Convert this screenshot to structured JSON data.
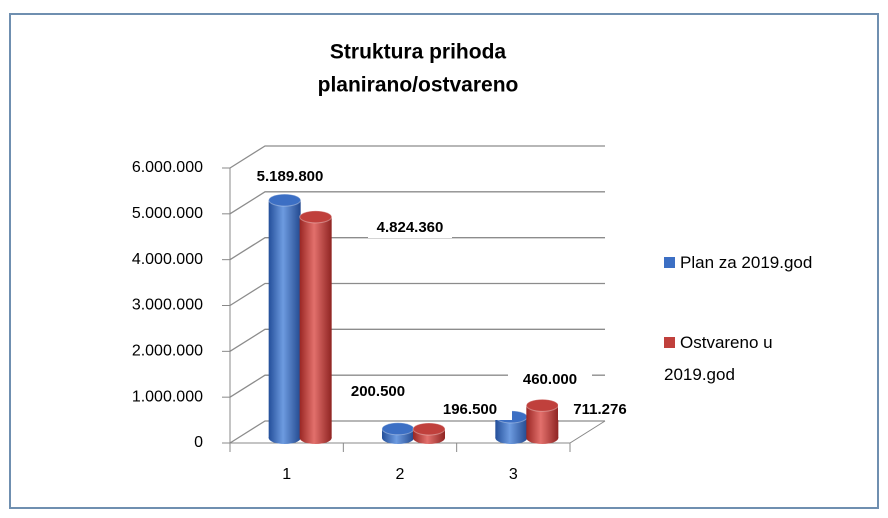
{
  "chart_data": {
    "type": "bar3d",
    "title": [
      "Struktura prihoda",
      "planirano/ostvareno"
    ],
    "categories": [
      "1",
      "2",
      "3"
    ],
    "series": [
      {
        "name": "Plan za 2019.god",
        "color": "#3c6fc4",
        "values": [
          5189800,
          200500,
          460000
        ],
        "value_labels": [
          "5.189.800",
          "200.500",
          "460.000"
        ]
      },
      {
        "name": "Ostvareno u 2019.god",
        "color": "#c0403c",
        "values": [
          4824360,
          196500,
          711276
        ],
        "value_labels": [
          "4.824.360",
          "196.500",
          "711.276"
        ]
      }
    ],
    "ylim": [
      0,
      6000000
    ],
    "yticks": [
      0,
      {
        "value": 1000000,
        "label": "1.000.000"
      },
      {
        "value": 2000000,
        "label": "2.000.000"
      },
      {
        "value": 3000000,
        "label": "3.000.000"
      },
      {
        "value": 4000000,
        "label": "4.000.000"
      },
      {
        "value": 5000000,
        "label": "5.000.000"
      },
      {
        "value": 6000000,
        "label": "6.000.000"
      }
    ],
    "grid": true,
    "legend": "right"
  }
}
